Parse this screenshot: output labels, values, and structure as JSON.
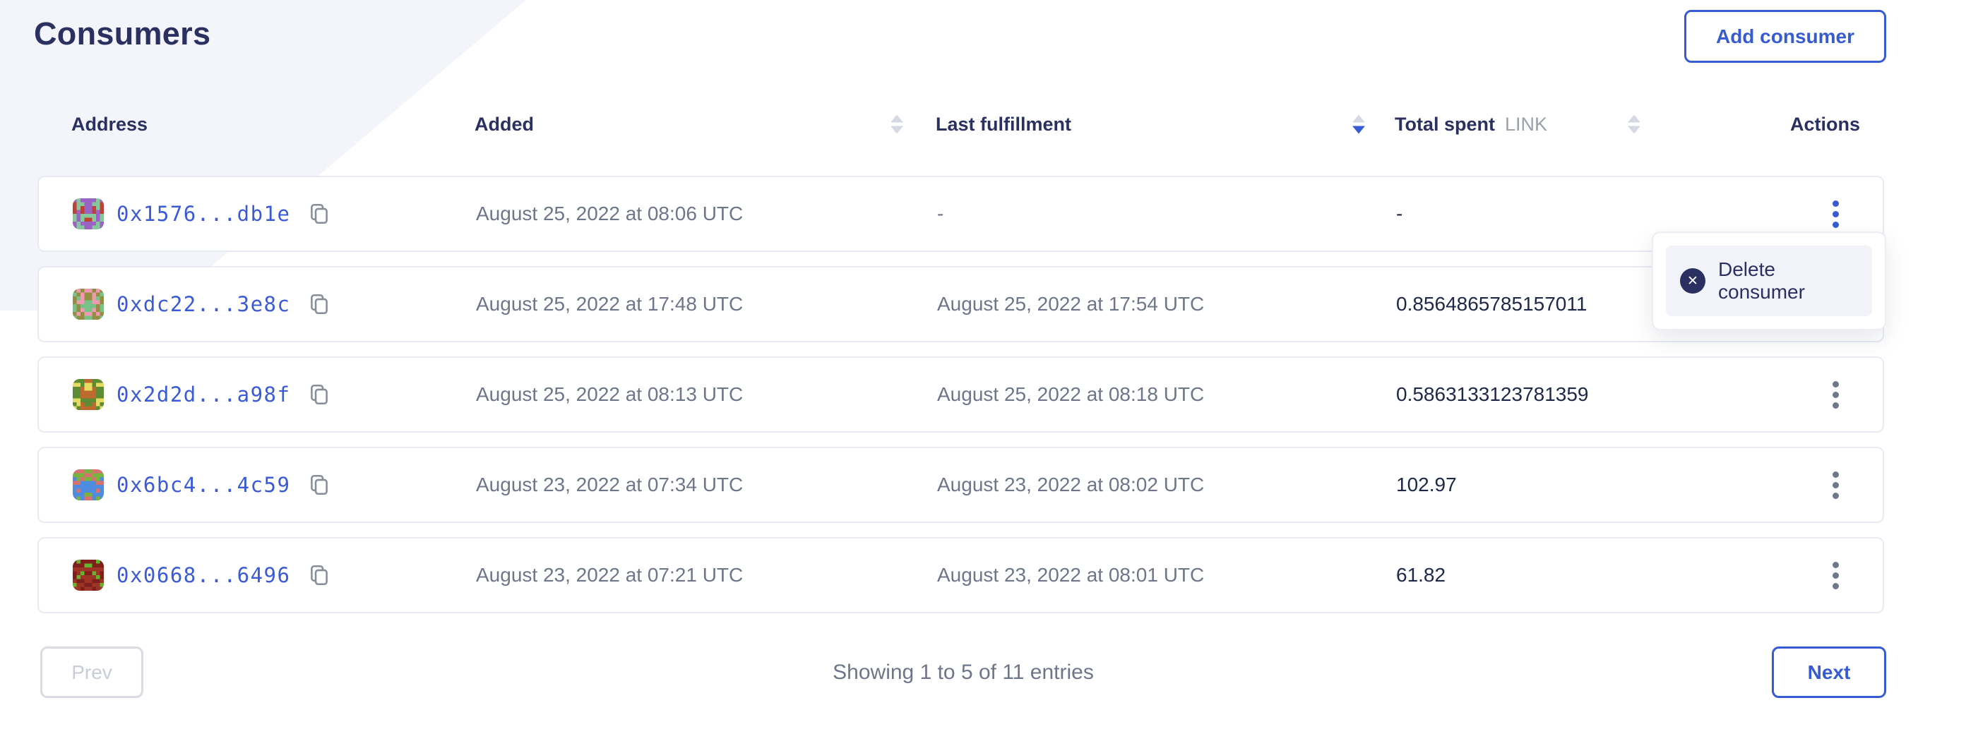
{
  "page": {
    "title": "Consumers",
    "add_button": "Add consumer"
  },
  "table": {
    "headers": {
      "address": "Address",
      "added": "Added",
      "last_fulfillment": "Last fulfillment",
      "total_spent": "Total spent",
      "total_unit": "LINK",
      "actions": "Actions"
    },
    "sort": {
      "active_column": "last_fulfillment",
      "direction": "desc"
    },
    "rows": [
      {
        "address": "0x1576...db1e",
        "added": "August 25, 2022 at 08:06 UTC",
        "last_fulfillment": "-",
        "total_spent": "-",
        "avatar": {
          "bg": "#86c89c",
          "fg": "#9b63c6",
          "spot": "#bf4136"
        }
      },
      {
        "address": "0xdc22...3e8c",
        "added": "August 25, 2022 at 17:48 UTC",
        "last_fulfillment": "August 25, 2022 at 17:54 UTC",
        "total_spent": "0.8564865785157011",
        "avatar": {
          "bg": "#77c287",
          "fg": "#958d43",
          "spot": "#f09ab0"
        }
      },
      {
        "address": "0x2d2d...a98f",
        "added": "August 25, 2022 at 08:13 UTC",
        "last_fulfillment": "August 25, 2022 at 08:18 UTC",
        "total_spent": "0.5863133123781359",
        "avatar": {
          "bg": "#bc6a2e",
          "fg": "#5d8c35",
          "spot": "#e7dc63"
        }
      },
      {
        "address": "0x6bc4...4c59",
        "added": "August 23, 2022 at 07:34 UTC",
        "last_fulfillment": "August 23, 2022 at 08:02 UTC",
        "total_spent": "102.97",
        "avatar": {
          "bg": "#4f8ce0",
          "fg": "#79b33e",
          "spot": "#d9716f"
        }
      },
      {
        "address": "0x0668...6496",
        "added": "August 23, 2022 at 07:21 UTC",
        "last_fulfillment": "August 23, 2022 at 08:01 UTC",
        "total_spent": "61.82",
        "avatar": {
          "bg": "#9c3527",
          "fg": "#7e2019",
          "spot": "#67b32e"
        }
      }
    ]
  },
  "menu": {
    "delete_label": "Delete consumer",
    "delete_glyph": "✕"
  },
  "pagination": {
    "prev": "Prev",
    "status": "Showing 1 to 5 of 11 entries",
    "next": "Next"
  },
  "icons": {
    "copy_icon": "overlapping-sheets outline",
    "kebab_icon": "vertical three dots",
    "delete_icon": "x in filled circle",
    "sort_icon": "up/down triangles"
  },
  "colors": {
    "accent_blue": "#375bd2",
    "navy_text": "#2a3160",
    "value_text": "#1f2847",
    "muted_text": "#6f7689",
    "unit_text": "#9ba1ad",
    "card_border": "#e8ebf2",
    "wedge_bg": "#f3f5fa",
    "menu_item_bg": "#f1f3f9",
    "disabled_border": "#d9dce3",
    "disabled_text": "#c9cdd7"
  }
}
